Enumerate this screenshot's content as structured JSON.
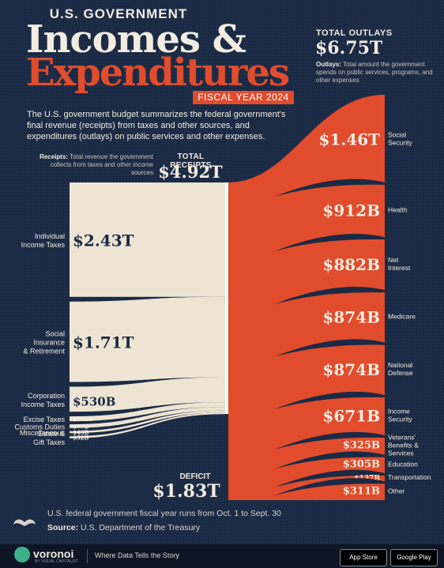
{
  "header": {
    "supertitle": "U.S. GOVERNMENT",
    "title_line1": "Incomes &",
    "title_line2": "Expenditures",
    "fiscal_year": "FISCAL YEAR 2024",
    "intro": "The U.S. government budget summarizes the federal government's final revenue (receipts) from taxes and other sources, and expenditures (outlays) on public services and other expenses."
  },
  "outlays": {
    "title": "TOTAL OUTLAYS",
    "value": "$6.75T",
    "desc_label": "Outlays:",
    "desc": "Total amount the government spends on public services, programs, and other expenses"
  },
  "receipts": {
    "title": "TOTAL RECEIPTS",
    "value": "$4.92T",
    "desc_label": "Receipts:",
    "desc": "Total revenue the government collects from taxes and other income sources"
  },
  "deficit": {
    "title": "DEFICIT",
    "value": "$1.83T"
  },
  "footer": {
    "note": "U.S. federal government fiscal year runs from Oct. 1 to Sept. 30",
    "source_label": "Source:",
    "source": "U.S. Department of the Treasury",
    "brand": "voronoi",
    "brand_sub": "BY VISUAL CAPITALIST",
    "tagline": "Where Data Tells the Story",
    "app_store": "App Store",
    "google_play": "Google Play"
  },
  "colors": {
    "background": "#1b2a44",
    "receipts": "#ede4d3",
    "outlays": "#e14c2d",
    "text": "#f2ece1"
  },
  "chart_data": {
    "type": "sankey",
    "units": "USD",
    "receipts": [
      {
        "name": "Individual Income Taxes",
        "label_lines": [
          "Individual",
          "Income Taxes"
        ],
        "value": 2.43,
        "value_label": "$2.43T"
      },
      {
        "name": "Social Insurance & Retirement",
        "label_lines": [
          "Social",
          "Insurance",
          "& Retirement"
        ],
        "value": 1.71,
        "value_label": "$1.71T"
      },
      {
        "name": "Corporation Income Taxes",
        "label_lines": [
          "Corporation",
          "Income Taxes"
        ],
        "value": 0.53,
        "value_label": "$530B"
      },
      {
        "name": "Excise Taxes",
        "label_lines": [
          "Excise Taxes"
        ],
        "value": 0.101,
        "value_label": "$101B"
      },
      {
        "name": "Customs Duties",
        "label_lines": [
          "Customs Duties"
        ],
        "value": 0.077,
        "value_label": "$77B"
      },
      {
        "name": "Miscellaneous",
        "label_lines": [
          "Miscellaneous"
        ],
        "value": 0.043,
        "value_label": "$43B"
      },
      {
        "name": "Estate & Gift Taxes",
        "label_lines": [
          "Estate &",
          "Gift Taxes"
        ],
        "value": 0.032,
        "value_label": "$32B"
      }
    ],
    "outlays": [
      {
        "name": "Social Security",
        "label_lines": [
          "Social",
          "Security"
        ],
        "value": 1.46,
        "value_label": "$1.46T"
      },
      {
        "name": "Health",
        "label_lines": [
          "Health"
        ],
        "value": 0.912,
        "value_label": "$912B"
      },
      {
        "name": "Net Interest",
        "label_lines": [
          "Net",
          "Interest"
        ],
        "value": 0.882,
        "value_label": "$882B"
      },
      {
        "name": "Medicare",
        "label_lines": [
          "Medicare"
        ],
        "value": 0.874,
        "value_label": "$874B"
      },
      {
        "name": "National Defense",
        "label_lines": [
          "National",
          "Defense"
        ],
        "value": 0.874,
        "value_label": "$874B"
      },
      {
        "name": "Income Security",
        "label_lines": [
          "Income",
          "Security"
        ],
        "value": 0.671,
        "value_label": "$671B"
      },
      {
        "name": "Veterans' Benefits & Services",
        "label_lines": [
          "Veterans'",
          "Benefits &",
          "Services"
        ],
        "value": 0.325,
        "value_label": "$325B"
      },
      {
        "name": "Education",
        "label_lines": [
          "Education"
        ],
        "value": 0.305,
        "value_label": "$305B"
      },
      {
        "name": "Transportation",
        "label_lines": [
          "Transportation"
        ],
        "value": 0.137,
        "value_label": "$137B"
      },
      {
        "name": "Other",
        "label_lines": [
          "Other"
        ],
        "value": 0.311,
        "value_label": "$311B"
      }
    ],
    "total_receipts": 4.92,
    "total_outlays": 6.75,
    "deficit": 1.83
  }
}
